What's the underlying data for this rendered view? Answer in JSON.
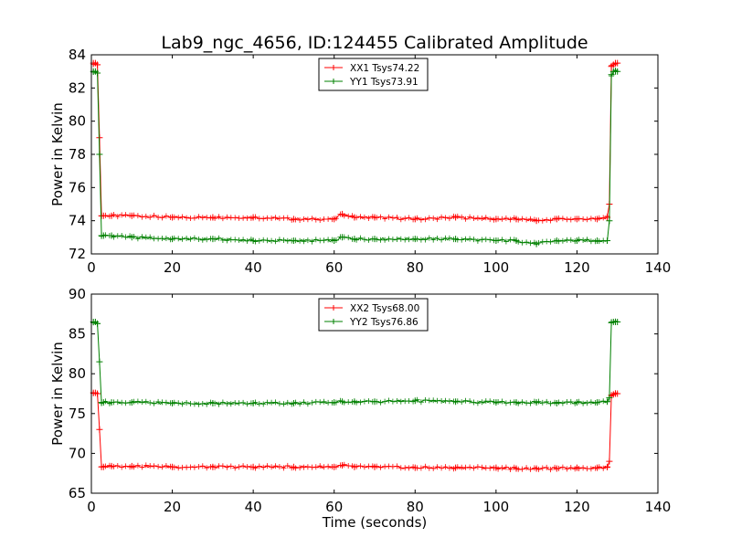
{
  "figure": {
    "title": "Lab9_ngc_4656, ID:124455 Calibrated Amplitude",
    "colors": {
      "red": "#ff0000",
      "green": "#008000"
    }
  },
  "chart_data": [
    {
      "type": "line",
      "title": "Lab9_ngc_4656, ID:124455 Calibrated Amplitude",
      "xlabel": "",
      "ylabel": "Power in Kelvin",
      "xlim": [
        0,
        140
      ],
      "ylim": [
        72,
        84
      ],
      "xticks": [
        0,
        20,
        40,
        60,
        80,
        100,
        120,
        140
      ],
      "yticks": [
        72,
        74,
        76,
        78,
        80,
        82,
        84
      ],
      "grid": false,
      "legend_position": "top-center",
      "markers": "plus",
      "x": [
        0.5,
        1,
        1.5,
        2,
        2.5,
        3,
        5,
        10,
        20,
        30,
        40,
        50,
        60,
        62,
        65,
        70,
        80,
        90,
        100,
        105,
        110,
        115,
        120,
        125,
        127.5,
        128,
        128.5,
        129,
        129.5,
        130
      ],
      "series": [
        {
          "name": "XX1 Tsys74.22",
          "color": "#ff0000",
          "values": [
            83.5,
            83.5,
            83.4,
            79.0,
            74.3,
            74.3,
            74.3,
            74.3,
            74.2,
            74.2,
            74.2,
            74.1,
            74.1,
            74.4,
            74.2,
            74.2,
            74.1,
            74.2,
            74.1,
            74.1,
            74.0,
            74.1,
            74.1,
            74.1,
            74.2,
            75.0,
            83.3,
            83.4,
            83.5,
            83.5
          ]
        },
        {
          "name": "YY1 Tsys73.91",
          "color": "#008000",
          "values": [
            83.0,
            83.0,
            82.9,
            78.0,
            73.1,
            73.1,
            73.1,
            73.0,
            72.9,
            72.9,
            72.8,
            72.8,
            72.8,
            73.0,
            72.9,
            72.9,
            72.9,
            72.9,
            72.8,
            72.8,
            72.6,
            72.8,
            72.8,
            72.8,
            72.8,
            74.0,
            82.8,
            83.0,
            83.0,
            83.0
          ]
        }
      ]
    },
    {
      "type": "line",
      "title": "",
      "xlabel": "Time (seconds)",
      "ylabel": "Power in Kelvin",
      "xlim": [
        0,
        140
      ],
      "ylim": [
        65,
        90
      ],
      "xticks": [
        0,
        20,
        40,
        60,
        80,
        100,
        120,
        140
      ],
      "yticks": [
        65,
        70,
        75,
        80,
        85,
        90
      ],
      "grid": false,
      "legend_position": "top-center",
      "markers": "plus",
      "x": [
        0.5,
        1,
        1.5,
        2,
        2.5,
        3,
        5,
        10,
        20,
        30,
        40,
        50,
        60,
        62,
        65,
        70,
        80,
        90,
        100,
        105,
        110,
        115,
        120,
        125,
        127.5,
        128,
        128.5,
        129,
        129.5,
        130
      ],
      "series": [
        {
          "name": "XX2 Tsys68.00",
          "color": "#ff0000",
          "values": [
            77.6,
            77.6,
            77.5,
            73.0,
            68.3,
            68.3,
            68.4,
            68.4,
            68.3,
            68.3,
            68.3,
            68.3,
            68.3,
            68.5,
            68.3,
            68.3,
            68.2,
            68.2,
            68.2,
            68.1,
            68.1,
            68.1,
            68.2,
            68.2,
            68.3,
            69.0,
            77.3,
            77.4,
            77.5,
            77.5
          ]
        },
        {
          "name": "YY2 Tsys76.86",
          "color": "#008000",
          "values": [
            86.5,
            86.5,
            86.3,
            81.5,
            76.4,
            76.4,
            76.4,
            76.4,
            76.3,
            76.3,
            76.3,
            76.3,
            76.4,
            76.5,
            76.5,
            76.5,
            76.6,
            76.5,
            76.4,
            76.4,
            76.4,
            76.3,
            76.4,
            76.4,
            76.5,
            77.0,
            86.4,
            86.5,
            86.5,
            86.5
          ]
        }
      ]
    }
  ]
}
